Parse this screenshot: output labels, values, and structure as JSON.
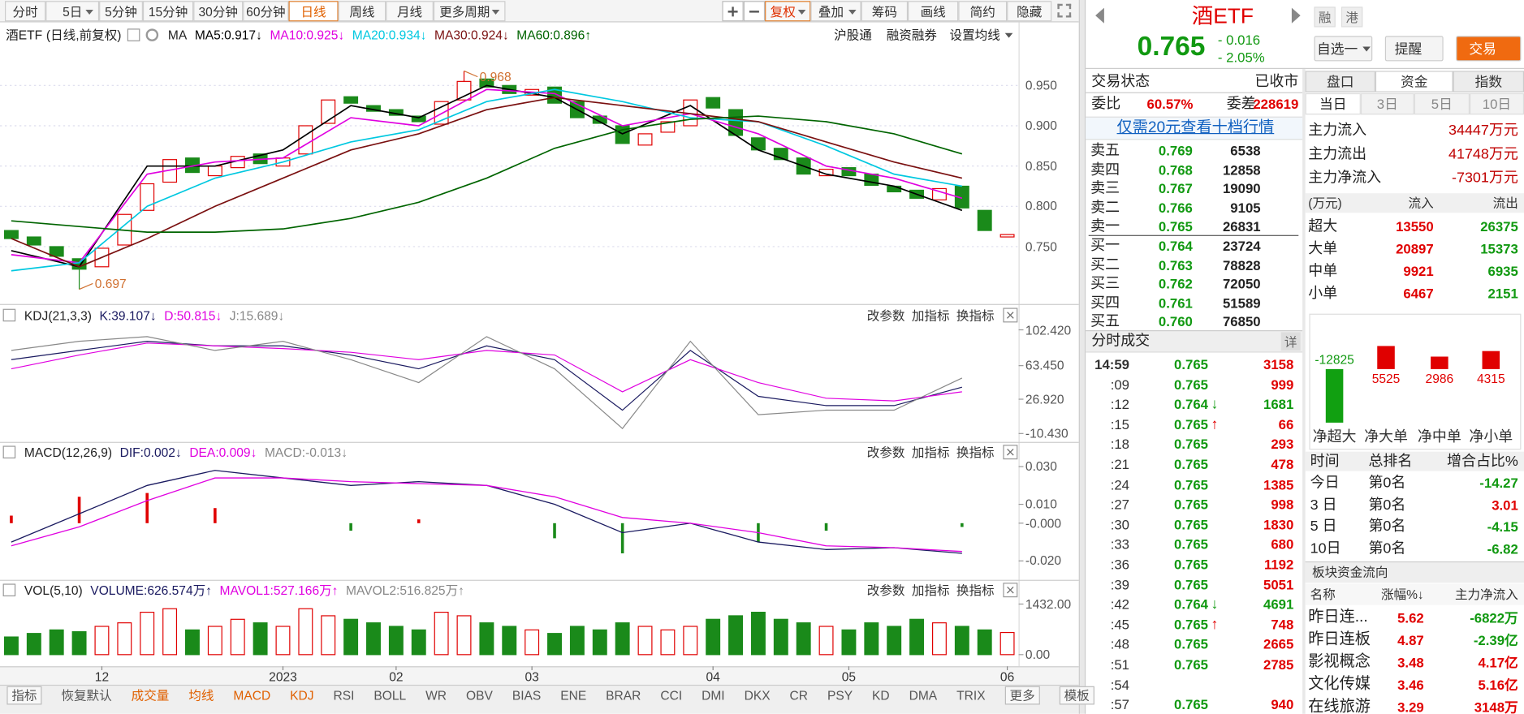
{
  "toolbar": {
    "periods": [
      "分时",
      "5日",
      "5分钟",
      "15分钟",
      "30分钟",
      "60分钟",
      "日线",
      "周线",
      "月线",
      "更多周期"
    ],
    "tools": [
      "复权",
      "叠加",
      "筹码",
      "画线",
      "简约",
      "隐藏"
    ]
  },
  "panel_tools": [
    "改参数",
    "加指标",
    "换指标"
  ],
  "chart_data": [
    {
      "type": "candlestick",
      "name": "酒ETF",
      "subtitle": "(日线,前复权)",
      "indicator": "MA",
      "links": [
        "沪股通",
        "融资融券",
        "设置均线"
      ],
      "up_color": "#e00000",
      "down_color": "#1a8a1a",
      "open": [
        0.77,
        0.762,
        0.75,
        0.735,
        0.725,
        0.752,
        0.795,
        0.83,
        0.86,
        0.838,
        0.848,
        0.865,
        0.85,
        0.865,
        0.903,
        0.936,
        0.925,
        0.92,
        0.912,
        0.902,
        0.932,
        0.958,
        0.95,
        0.938,
        0.948,
        0.93,
        0.912,
        0.9,
        0.876,
        0.892,
        0.9,
        0.935,
        0.92,
        0.885,
        0.872,
        0.86,
        0.838,
        0.848,
        0.84,
        0.825,
        0.82,
        0.808,
        0.825,
        0.795,
        0.762
      ],
      "close": [
        0.76,
        0.752,
        0.738,
        0.722,
        0.748,
        0.79,
        0.828,
        0.858,
        0.842,
        0.85,
        0.862,
        0.853,
        0.86,
        0.9,
        0.932,
        0.928,
        0.918,
        0.913,
        0.905,
        0.93,
        0.955,
        0.948,
        0.94,
        0.945,
        0.928,
        0.91,
        0.903,
        0.878,
        0.89,
        0.905,
        0.932,
        0.922,
        0.888,
        0.87,
        0.858,
        0.84,
        0.846,
        0.838,
        0.826,
        0.818,
        0.81,
        0.822,
        0.798,
        0.77,
        0.765
      ],
      "max": {
        "index": 20,
        "value": 0.968
      },
      "min": {
        "index": 3,
        "value": 0.697
      },
      "ma_index": [
        0,
        3,
        6,
        9,
        12,
        15,
        18,
        21,
        24,
        27,
        30,
        33,
        36,
        39,
        42
      ],
      "legend": [
        {
          "label": "MA5:0.917",
          "arrow": "↓",
          "color": "#000000",
          "values": [
            0.745,
            0.725,
            0.85,
            0.85,
            0.87,
            0.925,
            0.91,
            0.95,
            0.935,
            0.89,
            0.925,
            0.87,
            0.84,
            0.825,
            0.795
          ]
        },
        {
          "label": "MA10:0.925",
          "arrow": "↓",
          "color": "#e000e0",
          "values": [
            0.74,
            0.73,
            0.84,
            0.855,
            0.86,
            0.91,
            0.9,
            0.945,
            0.94,
            0.9,
            0.915,
            0.89,
            0.85,
            0.835,
            0.81
          ]
        },
        {
          "label": "MA20:0.934",
          "arrow": "↓",
          "color": "#00c8e0",
          "values": [
            0.72,
            0.73,
            0.8,
            0.835,
            0.855,
            0.88,
            0.895,
            0.93,
            0.945,
            0.93,
            0.91,
            0.905,
            0.875,
            0.84,
            0.825
          ]
        },
        {
          "label": "MA30:0.924",
          "arrow": "↓",
          "color": "#7a1010",
          "values": [
            0.76,
            0.725,
            0.76,
            0.8,
            0.835,
            0.87,
            0.89,
            0.92,
            0.935,
            0.925,
            0.915,
            0.905,
            0.88,
            0.855,
            0.835
          ]
        },
        {
          "label": "MA60:0.896",
          "arrow": "↑",
          "color": "#006400",
          "values": [
            0.782,
            0.775,
            0.768,
            0.768,
            0.772,
            0.785,
            0.805,
            0.835,
            0.872,
            0.895,
            0.908,
            0.912,
            0.905,
            0.89,
            0.865
          ]
        }
      ],
      "ylim": [
        0.68,
        1.0
      ],
      "yticks": [
        {
          "value": 0.95,
          "label": "0.950"
        },
        {
          "value": 0.9,
          "label": "0.900"
        },
        {
          "value": 0.85,
          "label": "0.850"
        },
        {
          "value": 0.8,
          "label": "0.800"
        },
        {
          "value": 0.75,
          "label": "0.750"
        }
      ],
      "xticks": [
        {
          "value": 4,
          "label": "12"
        },
        {
          "value": 12,
          "label": "2023"
        },
        {
          "value": 17,
          "label": "02"
        },
        {
          "value": 23,
          "label": "03"
        },
        {
          "value": 31,
          "label": "04"
        },
        {
          "value": 37,
          "label": "05"
        },
        {
          "value": 44,
          "label": "06"
        }
      ],
      "grid": true
    },
    {
      "type": "line",
      "title": "KDJ(21,3,3)",
      "x": [
        0,
        3,
        6,
        9,
        12,
        15,
        18,
        21,
        24,
        27,
        30,
        33,
        36,
        39,
        42
      ],
      "series": [
        {
          "label": "K:39.107",
          "arrow": "↓",
          "color": "#1a1a60",
          "values": [
            70,
            80,
            90,
            85,
            85,
            75,
            60,
            85,
            70,
            15,
            80,
            30,
            20,
            20,
            40
          ]
        },
        {
          "label": "D:50.815",
          "arrow": "↓",
          "color": "#e000e0",
          "values": [
            60,
            75,
            88,
            85,
            82,
            78,
            70,
            80,
            75,
            35,
            70,
            45,
            28,
            25,
            35
          ]
        },
        {
          "label": "J:15.689",
          "arrow": "↓",
          "color": "#888888",
          "values": [
            80,
            90,
            95,
            80,
            90,
            70,
            45,
            95,
            60,
            -5,
            90,
            10,
            15,
            15,
            50
          ]
        }
      ],
      "ylim": [
        -16.4,
        109.4
      ],
      "yticks": [
        {
          "value": 102.42,
          "label": "102.420"
        },
        {
          "value": 63.45,
          "label": "63.450"
        },
        {
          "value": 26.92,
          "label": "26.920"
        },
        {
          "value": -10.43,
          "label": "-10.430"
        }
      ]
    },
    {
      "type": "macd",
      "title": "MACD(12,26,9)",
      "x": [
        0,
        3,
        6,
        9,
        12,
        15,
        18,
        21,
        24,
        27,
        30,
        33,
        36,
        39,
        42
      ],
      "up_color": "#e00000",
      "down_color": "#1a8a1a",
      "series": [
        {
          "label": "DIF:0.002",
          "arrow": "↓",
          "color": "#1a1a60",
          "values": [
            -0.01,
            0.005,
            0.02,
            0.028,
            0.024,
            0.02,
            0.022,
            0.02,
            0.01,
            -0.005,
            0.0,
            -0.01,
            -0.014,
            -0.013,
            -0.016
          ]
        },
        {
          "label": "DEA:0.009",
          "arrow": "↓",
          "color": "#e000e0",
          "values": [
            -0.012,
            -0.002,
            0.012,
            0.024,
            0.024,
            0.022,
            0.021,
            0.02,
            0.014,
            0.003,
            0.0,
            -0.005,
            -0.012,
            -0.013,
            -0.015
          ]
        },
        {
          "label": "MACD:-0.013",
          "arrow": "↓",
          "color": "#888888",
          "values": [
            0.004,
            0.014,
            0.016,
            0.008,
            0.0,
            -0.004,
            0.002,
            0.0,
            -0.008,
            -0.016,
            0.0,
            -0.01,
            -0.004,
            0.0,
            -0.002
          ]
        }
      ],
      "ylim": [
        -0.0285,
        0.0333
      ],
      "yticks": [
        {
          "value": 0.03,
          "label": "0.030"
        },
        {
          "value": 0.01,
          "label": "0.010"
        },
        {
          "value": 0,
          "label": "-0.000"
        },
        {
          "value": -0.02,
          "label": "-0.020"
        }
      ]
    },
    {
      "type": "volume",
      "title": "VOL(5,10)",
      "series": [
        {
          "label": "VOLUME:626.574万",
          "arrow": "↑",
          "color": "#1a1a60",
          "values": [
            500,
            600,
            700,
            650,
            800,
            900,
            1200,
            1300,
            700,
            800,
            1000,
            900,
            800,
            1300,
            1100,
            1000,
            900,
            800,
            700,
            1200,
            1100,
            900,
            800,
            700,
            600,
            800,
            700,
            900,
            800,
            700,
            800,
            1000,
            1100,
            1200,
            1000,
            900,
            800,
            700,
            900,
            800,
            1000,
            900,
            800,
            700,
            626.574
          ]
        },
        {
          "label": "MAVOL1:527.166万",
          "arrow": "↑",
          "color": "#e000e0"
        },
        {
          "label": "MAVOL2:516.825万",
          "arrow": "↑",
          "color": "#888888"
        }
      ],
      "ylim": [
        0,
        1650
      ],
      "yticks": [
        {
          "value": 1432,
          "label": "1432.00"
        },
        {
          "value": 0,
          "label": "0.00"
        }
      ]
    }
  ],
  "indicator_tabs": [
    "指标",
    "恢复默认",
    "成交量",
    "均线",
    "MACD",
    "KDJ",
    "RSI",
    "BOLL",
    "WR",
    "OBV",
    "BIAS",
    "ENE",
    "BRAR",
    "CCI",
    "DMI",
    "DKX",
    "CR",
    "PSY",
    "KD",
    "DMA",
    "TRIX",
    "更多",
    "模板"
  ],
  "quote": {
    "name": "酒ETF",
    "markets": [
      "融",
      "港"
    ],
    "price": "0.765",
    "change": "- 0.016",
    "change_pct": "- 2.05%",
    "buttons": [
      "自选一",
      "提醒",
      "交易"
    ]
  },
  "status": {
    "label": "交易状态",
    "value": "已收市"
  },
  "ratio": {
    "label": "委比",
    "value": "60.57%",
    "diff_label": "委差",
    "diff": "228619"
  },
  "level2_link": "仅需20元查看十档行情",
  "order_book": [
    [
      "卖五",
      "0.769",
      "6538"
    ],
    [
      "卖四",
      "0.768",
      "12858"
    ],
    [
      "卖三",
      "0.767",
      "19090"
    ],
    [
      "卖二",
      "0.766",
      "9105"
    ],
    [
      "卖一",
      "0.765",
      "26831"
    ],
    [
      "买一",
      "0.764",
      "23724"
    ],
    [
      "买二",
      "0.763",
      "78828"
    ],
    [
      "买三",
      "0.762",
      "72050"
    ],
    [
      "买四",
      "0.761",
      "51589"
    ],
    [
      "买五",
      "0.760",
      "76850"
    ]
  ],
  "trades": {
    "title": "分时成交",
    "detail": "详",
    "rows": [
      [
        "14:59",
        "0.765",
        "3158"
      ],
      [
        ":09",
        "0.765",
        "999"
      ],
      [
        ":12",
        "0.764",
        "1681",
        "↓"
      ],
      [
        ":15",
        "0.765",
        "66",
        "↑"
      ],
      [
        ":18",
        "0.765",
        "293"
      ],
      [
        ":21",
        "0.765",
        "478"
      ],
      [
        ":24",
        "0.765",
        "1385"
      ],
      [
        ":27",
        "0.765",
        "998"
      ],
      [
        ":30",
        "0.765",
        "1830"
      ],
      [
        ":33",
        "0.765",
        "680"
      ],
      [
        ":36",
        "0.765",
        "1192"
      ],
      [
        ":39",
        "0.765",
        "5051"
      ],
      [
        ":42",
        "0.764",
        "4691",
        "↓"
      ],
      [
        ":45",
        "0.765",
        "748",
        "↑"
      ],
      [
        ":48",
        "0.765",
        "2665"
      ],
      [
        ":51",
        "0.765",
        "2785"
      ],
      [
        ":54"
      ],
      [
        ":57",
        "0.765",
        "940"
      ]
    ]
  },
  "fund": {
    "tabs": [
      "盘口",
      "资金",
      "指数"
    ],
    "periods": [
      "当日",
      "3日",
      "5日",
      "10日"
    ],
    "summary": [
      [
        "主力流入",
        "34447万元"
      ],
      [
        "主力流出",
        "41748万元"
      ],
      [
        "主力净流入",
        "-7301万元"
      ]
    ],
    "table_header": [
      "(万元)",
      "流入",
      "流出"
    ],
    "table": [
      [
        "超大",
        "13550",
        "26375"
      ],
      [
        "大单",
        "20897",
        "15373"
      ],
      [
        "中单",
        "9921",
        "6935"
      ],
      [
        "小单",
        "6467",
        "2151"
      ]
    ],
    "net": {
      "values": [
        -12825,
        5525,
        2986,
        4315
      ],
      "categories": [
        "净超大",
        "净大单",
        "净中单",
        "净小单"
      ]
    },
    "rank_header": [
      "时间",
      "总排名",
      "增合占比%"
    ],
    "rank": [
      [
        "今日",
        "第0名",
        "-14.27"
      ],
      [
        "3 日",
        "第0名",
        "3.01"
      ],
      [
        "5 日",
        "第0名",
        "-4.15"
      ],
      [
        "10日",
        "第0名",
        "-6.82"
      ]
    ]
  },
  "sector": {
    "title": "板块资金流向",
    "header": [
      "名称",
      "涨幅%↓",
      "主力净流入"
    ],
    "rows": [
      [
        "昨日连...",
        "5.62",
        "-6822万"
      ],
      [
        "昨日连板",
        "4.87",
        "-2.39亿"
      ],
      [
        "影视概念",
        "3.48",
        "4.17亿"
      ],
      [
        "文化传媒",
        "3.46",
        "5.16亿"
      ],
      [
        "在线旅游",
        "3.29",
        "3148万"
      ]
    ]
  }
}
